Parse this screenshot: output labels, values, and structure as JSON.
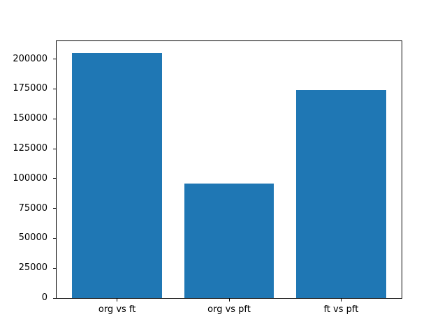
{
  "figure": {
    "background": "#ffffff",
    "spine_color": "#000000",
    "tick_color": "#000000",
    "text_color": "#000000"
  },
  "chart_data": {
    "type": "bar",
    "title": "",
    "xlabel": "",
    "ylabel": "",
    "categories": [
      "org vs ft",
      "org vs pft",
      "ft vs pft"
    ],
    "values": [
      204800,
      95800,
      174200
    ],
    "bar_color": "#1f77b4",
    "bar_width": 0.8,
    "xlim": [
      -0.54,
      2.54
    ],
    "ylim": [
      0,
      215000
    ],
    "yticks": [
      0,
      25000,
      50000,
      75000,
      100000,
      125000,
      150000,
      175000,
      200000
    ],
    "ytick_labels": [
      "0",
      "25000",
      "50000",
      "75000",
      "100000",
      "125000",
      "150000",
      "175000",
      "200000"
    ],
    "grid": false,
    "legend": false,
    "frame": "full-box"
  }
}
